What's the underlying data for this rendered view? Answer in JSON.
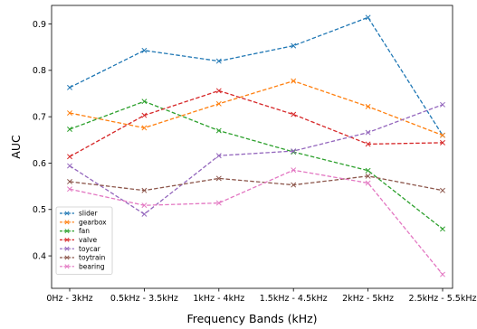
{
  "chart_data": {
    "type": "line",
    "title": "",
    "xlabel": "Frequency Bands (kHz)",
    "ylabel": "AUC",
    "categories": [
      "0Hz - 3kHz",
      "0.5kHz - 3.5kHz",
      "1kHz - 4kHz",
      "1.5kHz - 4.5kHz",
      "2kHz - 5kHz",
      "2.5kHz - 5.5kHz"
    ],
    "ylim": [
      0.33,
      0.94
    ],
    "yticks": [
      "0.4",
      "0.5",
      "0.6",
      "0.7",
      "0.8",
      "0.9"
    ],
    "grid": false,
    "legend_position": "lower-left",
    "series": [
      {
        "name": "slider",
        "color": "#1f77b4",
        "values": [
          0.763,
          0.843,
          0.82,
          0.853,
          0.914,
          0.66
        ]
      },
      {
        "name": "gearbox",
        "color": "#ff7f0e",
        "values": [
          0.708,
          0.676,
          0.728,
          0.777,
          0.722,
          0.66
        ]
      },
      {
        "name": "fan",
        "color": "#2ca02c",
        "values": [
          0.673,
          0.733,
          0.67,
          0.624,
          0.584,
          0.458
        ]
      },
      {
        "name": "valve",
        "color": "#d62728",
        "values": [
          0.614,
          0.703,
          0.756,
          0.705,
          0.641,
          0.644
        ]
      },
      {
        "name": "toycar",
        "color": "#9467bd",
        "values": [
          0.594,
          0.49,
          0.616,
          0.626,
          0.666,
          0.726
        ]
      },
      {
        "name": "toytrain",
        "color": "#8c564b",
        "values": [
          0.56,
          0.541,
          0.567,
          0.553,
          0.572,
          0.541
        ]
      },
      {
        "name": "bearing",
        "color": "#e377c2",
        "values": [
          0.544,
          0.509,
          0.514,
          0.585,
          0.557,
          0.36
        ]
      }
    ]
  }
}
